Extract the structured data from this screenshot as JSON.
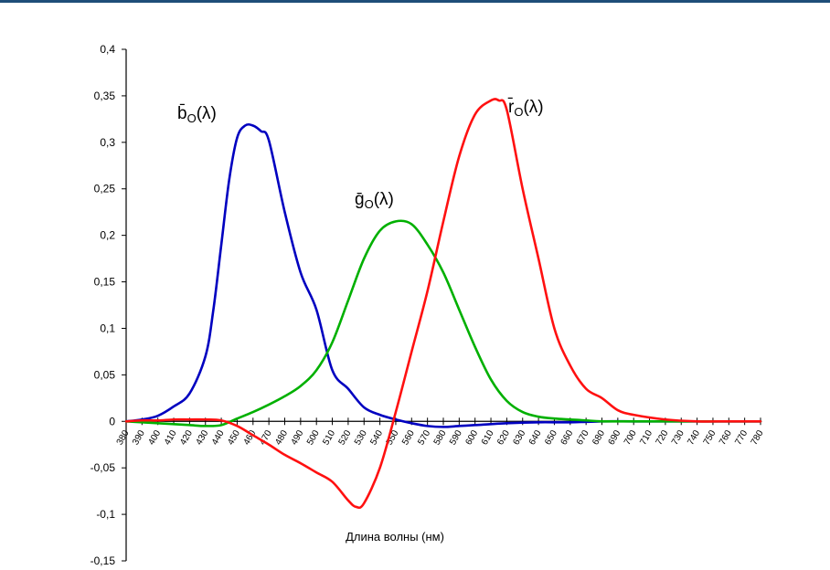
{
  "chart_data": {
    "type": "line",
    "xlabel": "Длина волны (нм)",
    "ylabel": "",
    "xlim": [
      380,
      780
    ],
    "ylim": [
      -0.15,
      0.4
    ],
    "grid": false,
    "y_ticks": [
      0.4,
      0.35,
      0.3,
      0.25,
      0.2,
      0.15,
      0.1,
      0.05,
      0,
      -0.05,
      -0.1,
      -0.15
    ],
    "y_tick_labels": [
      "0,4",
      "0,35",
      "0,3",
      "0,25",
      "0,2",
      "0,15",
      "0,1",
      "0,05",
      "0",
      "-0,05",
      "-0,1",
      "-0,15"
    ],
    "x_ticks": [
      380,
      390,
      400,
      410,
      420,
      430,
      440,
      450,
      460,
      470,
      480,
      490,
      500,
      510,
      520,
      530,
      540,
      550,
      560,
      570,
      580,
      590,
      600,
      610,
      620,
      630,
      640,
      650,
      660,
      670,
      680,
      690,
      700,
      710,
      720,
      730,
      740,
      750,
      760,
      770,
      780
    ],
    "series": [
      {
        "name": "b̄O(λ)",
        "color": "#0000c0",
        "x": [
          380,
          390,
          400,
          410,
          420,
          430,
          435,
          440,
          445,
          450,
          455,
          460,
          465,
          470,
          480,
          490,
          500,
          510,
          520,
          530,
          540,
          550,
          560,
          570,
          580,
          590,
          600,
          620,
          640,
          660,
          680,
          700,
          720,
          740,
          760,
          780
        ],
        "values": [
          0.0,
          0.002,
          0.006,
          0.016,
          0.03,
          0.07,
          0.12,
          0.19,
          0.26,
          0.305,
          0.318,
          0.318,
          0.312,
          0.302,
          0.225,
          0.16,
          0.12,
          0.055,
          0.035,
          0.015,
          0.007,
          0.002,
          -0.002,
          -0.005,
          -0.006,
          -0.005,
          -0.004,
          -0.002,
          -0.001,
          -0.001,
          0.0,
          0.0,
          0.0,
          0.0,
          0.0,
          0.0
        ]
      },
      {
        "name": "ḡO(λ)",
        "color": "#00b000",
        "x": [
          380,
          390,
          400,
          410,
          420,
          430,
          440,
          450,
          460,
          470,
          480,
          490,
          500,
          510,
          520,
          530,
          540,
          550,
          560,
          570,
          580,
          590,
          600,
          610,
          620,
          630,
          640,
          650,
          660,
          670,
          680,
          700,
          720,
          740,
          760,
          780
        ],
        "values": [
          0.0,
          -0.001,
          -0.002,
          -0.003,
          -0.004,
          -0.005,
          -0.004,
          0.003,
          0.01,
          0.018,
          0.027,
          0.038,
          0.055,
          0.085,
          0.13,
          0.175,
          0.205,
          0.215,
          0.212,
          0.19,
          0.16,
          0.12,
          0.08,
          0.045,
          0.022,
          0.01,
          0.005,
          0.003,
          0.002,
          0.001,
          0.0,
          0.0,
          0.0,
          0.0,
          0.0,
          0.0
        ]
      },
      {
        "name": "r̄O(λ)",
        "color": "#ff1010",
        "x": [
          380,
          390,
          400,
          410,
          420,
          430,
          440,
          450,
          460,
          470,
          480,
          490,
          500,
          510,
          520,
          525,
          530,
          540,
          550,
          560,
          570,
          580,
          590,
          600,
          610,
          615,
          620,
          630,
          640,
          650,
          660,
          670,
          680,
          690,
          700,
          720,
          740,
          760,
          780
        ],
        "values": [
          0.0,
          0.001,
          0.001,
          0.002,
          0.002,
          0.002,
          0.001,
          -0.005,
          -0.015,
          -0.025,
          -0.036,
          -0.045,
          -0.055,
          -0.065,
          -0.085,
          -0.092,
          -0.088,
          -0.05,
          0.01,
          0.075,
          0.14,
          0.215,
          0.285,
          0.33,
          0.345,
          0.345,
          0.335,
          0.25,
          0.175,
          0.1,
          0.06,
          0.035,
          0.025,
          0.012,
          0.007,
          0.002,
          0.0,
          0.0,
          0.0
        ]
      }
    ]
  }
}
